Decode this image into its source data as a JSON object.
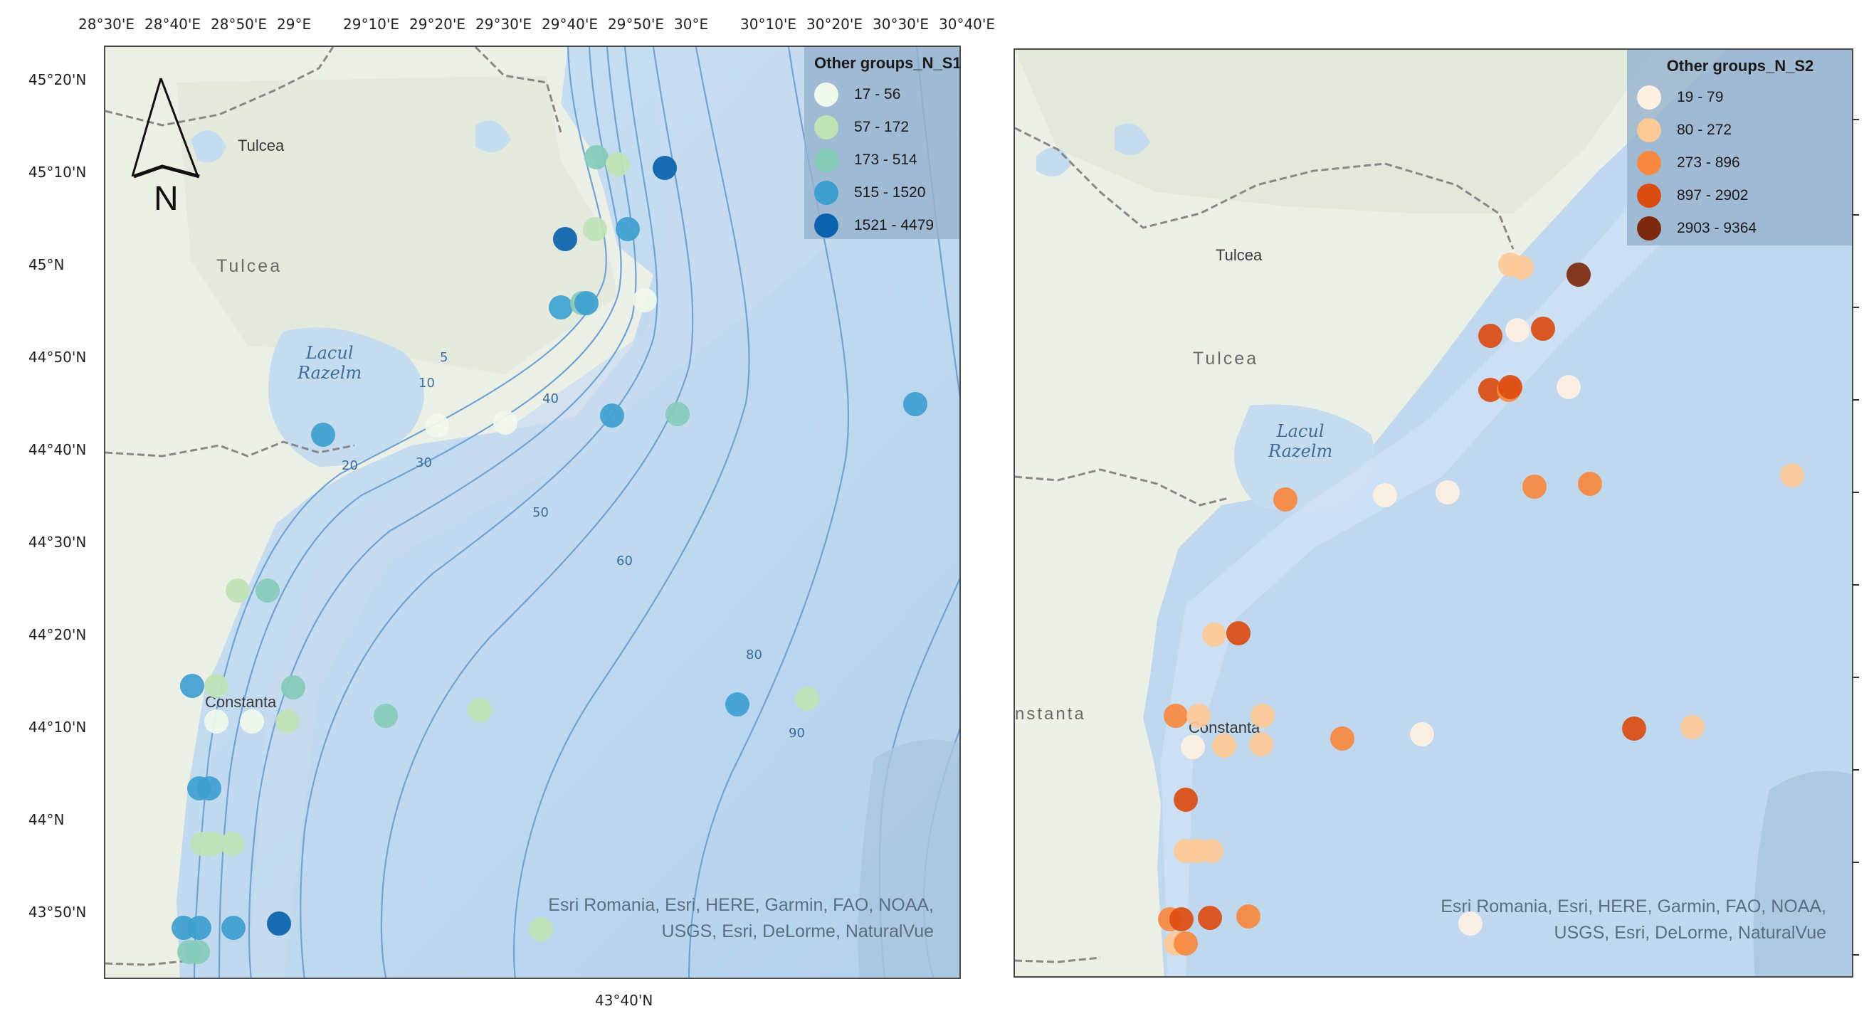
{
  "left_map": {
    "legend": {
      "title": "Other groups_N_S1",
      "classes": [
        {
          "label": "17 - 56",
          "color": "#f1f9ec"
        },
        {
          "label": "57 - 172",
          "color": "#bfe3b5"
        },
        {
          "label": "173 - 514",
          "color": "#86cbb8"
        },
        {
          "label": "515 - 1520",
          "color": "#3e9fcf"
        },
        {
          "label": "1521 - 4479",
          "color": "#0b63ad"
        }
      ]
    },
    "top_ticks": [
      "28°30'E",
      "28°40'E",
      "28°50'E",
      "29°E",
      "29°10'E",
      "29°20'E",
      "29°30'E",
      "29°40'E",
      "29°50'E",
      "30°E",
      "30°10'E",
      "30°20'E",
      "30°30'E",
      "30°40'E"
    ],
    "left_ticks": [
      "45°20'N",
      "45°10'N",
      "45°N",
      "44°50'N",
      "44°40'N",
      "44°30'N",
      "44°20'N",
      "44°10'N",
      "44°N",
      "43°50'N"
    ],
    "bottom_label": "43°40'N",
    "places": {
      "region": "Tulcea",
      "town": "Tulcea",
      "lake": [
        "Lacul",
        "Razelm"
      ],
      "city": "Constanta"
    },
    "north_label": "N",
    "attribution": [
      "Esri Romania, Esri, HERE, Garmin, FAO, NOAA,",
      "USGS, Esri, DeLorme, NaturalVue"
    ],
    "contour_labels": [
      "5",
      "10",
      "20",
      "30",
      "40",
      "50",
      "60",
      "80",
      "90"
    ]
  },
  "right_map": {
    "legend": {
      "title": "Other groups_N_S2",
      "classes": [
        {
          "label": "19 - 79",
          "color": "#fef0e2"
        },
        {
          "label": "80 - 272",
          "color": "#fdc996"
        },
        {
          "label": "273 - 896",
          "color": "#f9883f"
        },
        {
          "label": "897 - 2902",
          "color": "#db4c12"
        },
        {
          "label": "2903 - 9364",
          "color": "#7c2a0d"
        }
      ]
    },
    "places": {
      "region": "Tulcea",
      "town": "Tulcea",
      "lake": [
        "Lacul",
        "Razelm"
      ],
      "city_partial": "nstanta",
      "city": "Constanta"
    },
    "attribution": [
      "Esri Romania, Esri, HERE, Garmin, FAO, NOAA,",
      "USGS, Esri, DeLorme, NaturalVue"
    ]
  }
}
